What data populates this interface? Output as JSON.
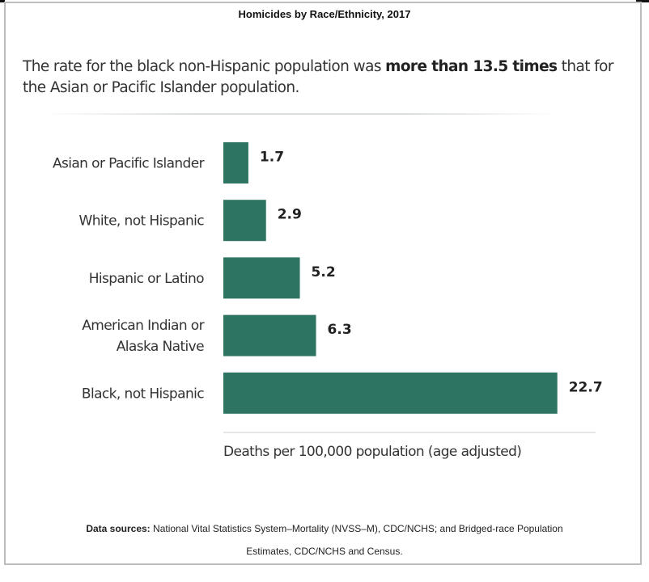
{
  "title": "Homicides by Race/Ethnicity, 2017",
  "headline": {
    "text_before": "The rate for the black non-Hispanic population was ",
    "text_bold": "more than 13.5 times",
    "text_after": " that for the Asian or Pacific Islander population."
  },
  "footer": {
    "label": "Data sources:",
    "line1": " National Vital Statistics System–Mortality (NVSS–M), CDC/NCHS; and Bridged-race Population",
    "line2": "Estimates, CDC/NCHS and Census."
  },
  "colors": {
    "bar": "#2e7462",
    "border": "#bdbdbd",
    "axis": "#cccccc"
  },
  "chart_data": {
    "type": "bar",
    "orientation": "horizontal",
    "title": "Homicides by Race/Ethnicity, 2017",
    "categories": [
      [
        "Asian or Pacific Islander"
      ],
      [
        "White, not Hispanic"
      ],
      [
        "Hispanic or Latino"
      ],
      [
        "American Indian or",
        "Alaska Native"
      ],
      [
        "Black, not Hispanic"
      ]
    ],
    "values": [
      1.7,
      2.9,
      5.2,
      6.3,
      22.7
    ],
    "value_labels": [
      "1.7",
      "2.9",
      "5.2",
      "6.3",
      "22.7"
    ],
    "xlabel": "Deaths per 100,000 population (age adjusted)",
    "ylabel": "",
    "xlim": [
      0,
      25.3
    ],
    "grid": false,
    "legend": "none"
  }
}
